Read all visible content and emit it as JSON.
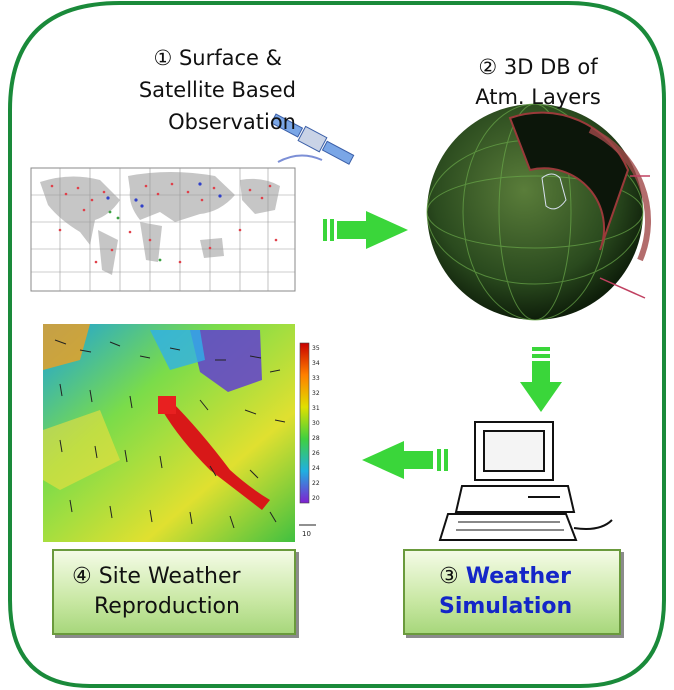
{
  "steps": {
    "step1": {
      "line1": "① Surface &",
      "line2": "Satellite Based",
      "line3": "Observation"
    },
    "step2": {
      "line1": "② 3D DB of",
      "line2": "Atm. Layers"
    },
    "step3": {
      "number": "③",
      "line1": "Weather",
      "line2": "Simulation"
    },
    "step4": {
      "line1": "④ Site Weather",
      "line2": "Reproduction"
    }
  },
  "colorbar": {
    "ticks": [
      "35",
      "34",
      "33",
      "32",
      "31",
      "30",
      "28",
      "26",
      "24",
      "22",
      "20"
    ],
    "scale_label": "10"
  },
  "colors": {
    "frame": "#1a8a3a",
    "arrow": "#3ad63a",
    "label_blue": "#1426c8",
    "box_fill": "#c9e8a4"
  },
  "icons": [
    "satellite-icon",
    "world-map-image",
    "globe-image",
    "weather-map-image",
    "computer-icon",
    "arrow-right-icon",
    "arrow-down-icon",
    "arrow-left-icon"
  ]
}
